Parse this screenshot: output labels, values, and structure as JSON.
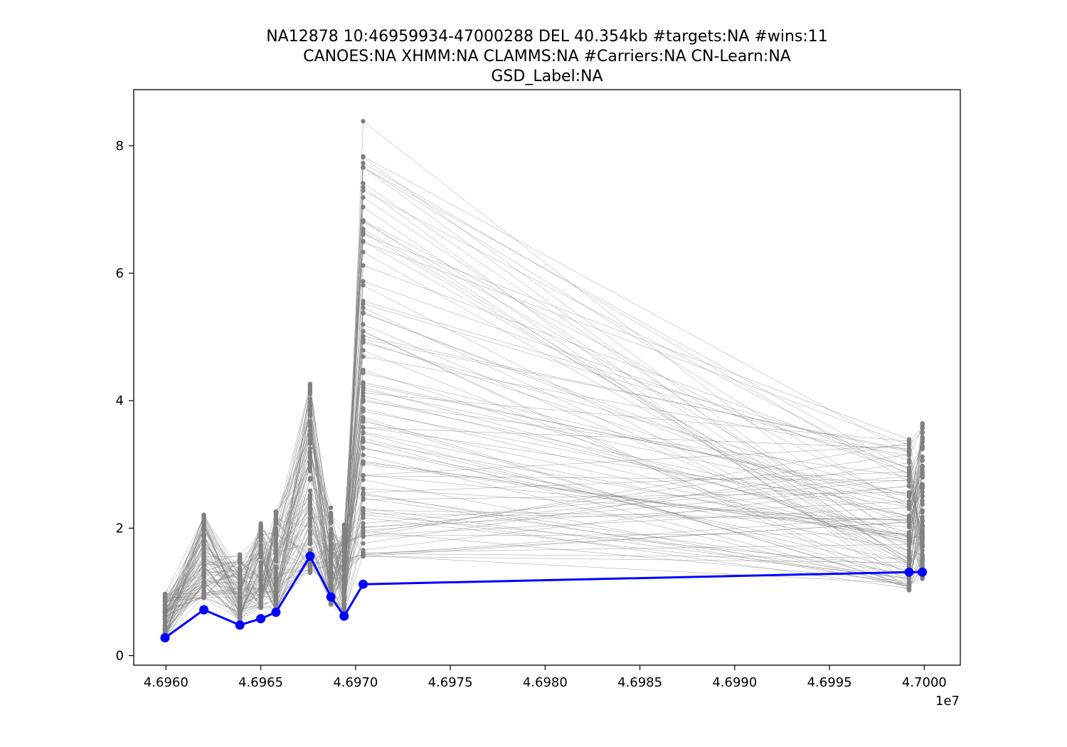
{
  "chart_data": {
    "type": "line",
    "title_lines": [
      "NA12878 10:46959934-47000288 DEL 40.354kb #targets:NA #wins:11",
      "CANOES:NA XHMM:NA CLAMMS:NA #Carriers:NA CN-Learn:NA",
      "GSD_Label:NA"
    ],
    "xlabel": "",
    "ylabel": "",
    "x_offset_label": "1e7",
    "xlim": [
      4.69583,
      4.70019
    ],
    "ylim": [
      -0.15,
      8.88
    ],
    "x_ticks": [
      4.696,
      4.6965,
      4.697,
      4.6975,
      4.698,
      4.6985,
      4.699,
      4.6995,
      4.7
    ],
    "x_tick_labels": [
      "4.6960",
      "4.6965",
      "4.6970",
      "4.6975",
      "4.6980",
      "4.6985",
      "4.6990",
      "4.6995",
      "4.7000"
    ],
    "y_ticks": [
      0,
      2,
      4,
      6,
      8
    ],
    "y_tick_labels": [
      "0",
      "2",
      "4",
      "6",
      "8"
    ],
    "grid": false,
    "x": [
      4.695995,
      4.6962,
      4.69639,
      4.6965,
      4.69658,
      4.69676,
      4.69687,
      4.69694,
      4.69704,
      4.69992,
      4.69999
    ],
    "highlight_series": {
      "values": [
        0.28,
        0.72,
        0.48,
        0.58,
        0.68,
        1.56,
        0.92,
        0.62,
        1.12,
        1.31,
        1.31
      ],
      "color": "#0000ff"
    },
    "background_color": "#808080",
    "background_series_count": 100,
    "background_ranges": [
      [
        0.25,
        1.0
      ],
      [
        0.9,
        2.25
      ],
      [
        0.55,
        1.6
      ],
      [
        0.75,
        2.08
      ],
      [
        0.7,
        2.3
      ],
      [
        1.3,
        4.27
      ],
      [
        0.8,
        2.33
      ],
      [
        0.62,
        2.06
      ],
      [
        1.55,
        8.45
      ],
      [
        1.02,
        3.4
      ],
      [
        1.2,
        3.7
      ]
    ]
  }
}
